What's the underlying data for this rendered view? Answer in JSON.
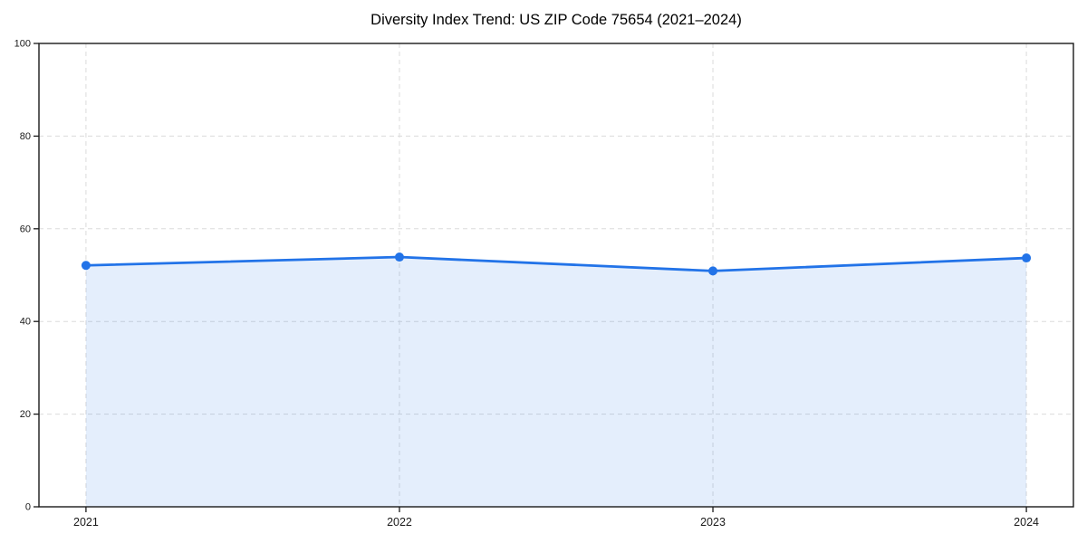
{
  "chart_data": {
    "type": "line",
    "title": "Diversity Index Trend: US ZIP Code 75654 (2021–2024)",
    "x": [
      2021,
      2022,
      2023,
      2024
    ],
    "x_tick_labels": [
      "2021",
      "2022",
      "2023",
      "2024"
    ],
    "series": [
      {
        "name": "Diversity Index",
        "values": [
          52.1,
          53.9,
          50.9,
          53.7
        ]
      }
    ],
    "xlabel": "",
    "ylabel": "",
    "xlim": [
      2020.85,
      2024.15
    ],
    "ylim": [
      0,
      100
    ],
    "y_ticks": [
      0,
      20,
      40,
      60,
      80,
      100
    ],
    "grid": true,
    "grid_style": "dashed",
    "legend_position": "none",
    "area_fill": true,
    "colors": {
      "line": "#2273E8",
      "marker": "#2273E8",
      "area_fill_rgba": "rgba(34, 115, 232, 0.12)",
      "grid": "#DBDBDB",
      "spine": "#1A1A1A",
      "tick_label": "#1A1A1A",
      "title": "#000000",
      "background": "#FFFFFF"
    }
  }
}
